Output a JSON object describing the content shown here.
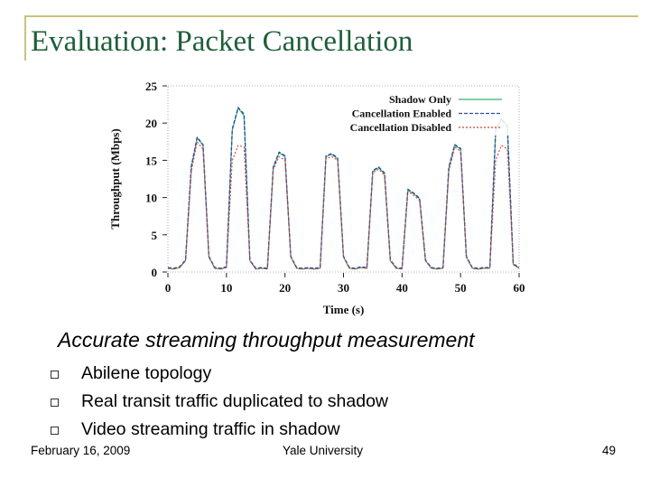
{
  "slide": {
    "title": "Evaluation: Packet Cancellation",
    "subtitle": "Accurate streaming throughput measurement",
    "bullets": [
      "Abilene topology",
      "Real transit traffic duplicated to shadow",
      "Video streaming traffic in shadow"
    ],
    "footer": {
      "date": "February 16, 2009",
      "organization": "Yale University",
      "page": "49"
    }
  },
  "chart_data": {
    "type": "line",
    "xlabel": "Time (s)",
    "ylabel": "Throughput (Mbps)",
    "xlim": [
      0,
      60
    ],
    "ylim": [
      0,
      25
    ],
    "xticks": [
      0,
      10,
      20,
      30,
      40,
      50,
      60
    ],
    "yticks": [
      0,
      5,
      10,
      15,
      20,
      25
    ],
    "grid": false,
    "legend_position": "top-right",
    "x": [
      0,
      1,
      2,
      3,
      4,
      5,
      6,
      7,
      8,
      9,
      10,
      11,
      12,
      13,
      14,
      15,
      16,
      17,
      18,
      19,
      20,
      21,
      22,
      23,
      24,
      25,
      26,
      27,
      28,
      29,
      30,
      31,
      32,
      33,
      34,
      35,
      36,
      37,
      38,
      39,
      40,
      41,
      42,
      43,
      44,
      45,
      46,
      47,
      48,
      49,
      50,
      51,
      52,
      53,
      54,
      55,
      56,
      57,
      58,
      59,
      60
    ],
    "series": [
      {
        "name": "Shadow Only",
        "color": "#38b46a",
        "values": [
          0.5,
          0.4,
          0.6,
          1.5,
          14,
          18,
          17,
          2,
          0.5,
          0.4,
          0.6,
          19,
          22,
          21,
          1.5,
          0.4,
          0.5,
          0.4,
          14,
          16,
          15.5,
          2,
          0.5,
          0.4,
          0.5,
          0.4,
          0.5,
          15.5,
          15.8,
          15.2,
          2,
          0.5,
          0.4,
          0.6,
          0.5,
          13.5,
          14,
          13.2,
          1.5,
          0.5,
          0.4,
          11,
          10.5,
          9.8,
          1.5,
          0.5,
          0.4,
          0.5,
          14,
          17,
          16.5,
          2,
          0.5,
          0.4,
          0.5,
          0.5,
          19,
          20.5,
          19.5,
          1,
          0.5
        ]
      },
      {
        "name": "Cancellation Enabled",
        "color": "#2a4fa6",
        "values": [
          0.6,
          0.5,
          0.7,
          1.6,
          14.2,
          18.1,
          17.1,
          2.1,
          0.6,
          0.5,
          0.7,
          19.2,
          22.1,
          21.2,
          1.6,
          0.5,
          0.6,
          0.5,
          14.1,
          16.1,
          15.6,
          2.1,
          0.6,
          0.5,
          0.6,
          0.5,
          0.6,
          15.6,
          15.9,
          15.3,
          2.1,
          0.6,
          0.5,
          0.7,
          0.6,
          13.6,
          14.1,
          13.3,
          1.6,
          0.6,
          0.5,
          11.1,
          10.6,
          9.9,
          1.6,
          0.6,
          0.5,
          0.6,
          14.1,
          17.1,
          16.6,
          2.1,
          0.6,
          0.5,
          0.6,
          0.6,
          19.2,
          20.6,
          19.6,
          1.1,
          0.6
        ]
      },
      {
        "name": "Cancellation Disabled",
        "color": "#d83c3c",
        "values": [
          0.5,
          0.4,
          0.6,
          1.5,
          13.5,
          17.5,
          16.5,
          2,
          0.5,
          0.4,
          0.6,
          15,
          17,
          16.8,
          1.5,
          0.4,
          0.5,
          0.4,
          13.8,
          15.5,
          15,
          2,
          0.5,
          0.4,
          0.5,
          0.4,
          0.5,
          15.2,
          15.5,
          15,
          2,
          0.5,
          0.4,
          0.6,
          0.5,
          13.3,
          13.8,
          13,
          1.5,
          0.5,
          0.4,
          10.8,
          10.3,
          9.6,
          1.5,
          0.5,
          0.4,
          0.5,
          13.5,
          16.8,
          16.2,
          2,
          0.5,
          0.4,
          0.5,
          0.5,
          15,
          17,
          16.5,
          1,
          0.5
        ]
      }
    ]
  }
}
